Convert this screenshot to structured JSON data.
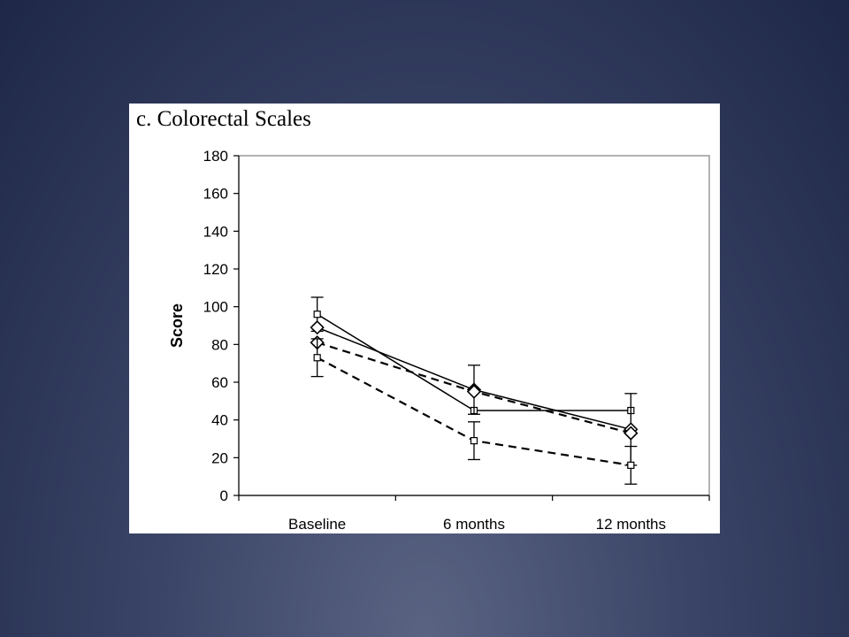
{
  "chart_data": {
    "type": "line",
    "title": "c. Colorectal Scales",
    "ylabel": "Score",
    "xlabel": "",
    "ylim": [
      0,
      180
    ],
    "yticks": [
      0,
      20,
      40,
      60,
      80,
      100,
      120,
      140,
      160,
      180
    ],
    "categories": [
      "Baseline",
      "6 months",
      "12 months"
    ],
    "grid": false,
    "legend": "none",
    "series": [
      {
        "style": "solid",
        "marker": "square",
        "values": [
          96,
          45,
          45
        ],
        "errors": [
          9,
          0,
          0
        ]
      },
      {
        "style": "solid",
        "marker": "diamond",
        "values": [
          89,
          56,
          35
        ],
        "errors": [
          0,
          13,
          19
        ]
      },
      {
        "style": "dashed",
        "marker": "diamond",
        "values": [
          81,
          55,
          33
        ],
        "errors": [
          0,
          0,
          0
        ]
      },
      {
        "style": "dashed",
        "marker": "square",
        "values": [
          73,
          29,
          16
        ],
        "errors": [
          10,
          10,
          10
        ]
      }
    ]
  }
}
